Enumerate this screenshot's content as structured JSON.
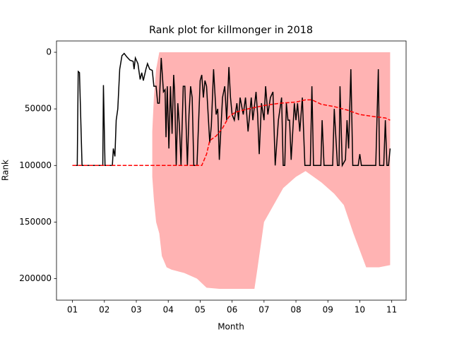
{
  "chart_data": {
    "type": "line",
    "title": "Rank plot for killmonger in 2018",
    "x_label": "Month",
    "y_label": "Rank",
    "xlim": [
      0.5,
      11.45
    ],
    "ylim": [
      -10000,
      219000
    ],
    "y_inverted": true,
    "xticks": [
      {
        "value": 1,
        "label": "01"
      },
      {
        "value": 2,
        "label": "02"
      },
      {
        "value": 3,
        "label": "03"
      },
      {
        "value": 4,
        "label": "04"
      },
      {
        "value": 5,
        "label": "05"
      },
      {
        "value": 6,
        "label": "06"
      },
      {
        "value": 7,
        "label": "07"
      },
      {
        "value": 8,
        "label": "08"
      },
      {
        "value": 9,
        "label": "09"
      },
      {
        "value": 10,
        "label": "10"
      },
      {
        "value": 11,
        "label": "11"
      }
    ],
    "yticks": [
      0,
      50000,
      100000,
      150000,
      200000
    ],
    "series": [
      {
        "style": "band",
        "color": "#ffb3b3",
        "x": [
          3.5,
          3.55,
          3.62,
          3.72,
          3.8,
          3.95,
          4.1,
          4.5,
          4.9,
          5.2,
          5.6,
          6.7,
          6.8,
          7.0,
          7.3,
          7.6,
          8.0,
          8.3,
          8.8,
          9.2,
          9.5,
          9.8,
          10.2,
          10.6,
          10.95
        ],
        "values_top": [
          70000,
          40000,
          15000,
          0,
          0,
          0,
          0,
          0,
          0,
          0,
          0,
          0,
          0,
          0,
          0,
          0,
          0,
          0,
          0,
          0,
          0,
          0,
          0,
          0,
          0
        ],
        "values": [
          110000,
          130000,
          150000,
          160000,
          180000,
          190000,
          192000,
          195000,
          200000,
          208000,
          209000,
          209000,
          190000,
          150000,
          135000,
          120000,
          110000,
          105000,
          115000,
          125000,
          135000,
          160000,
          190000,
          190000,
          188000
        ]
      },
      {
        "style": "solid",
        "color": "#000000",
        "x": [
          1.0,
          1.15,
          1.18,
          1.22,
          1.3,
          1.95,
          1.97,
          2.02,
          2.25,
          2.28,
          2.33,
          2.37,
          2.42,
          2.48,
          2.55,
          2.62,
          2.7,
          2.8,
          2.9,
          2.93,
          2.97,
          3.05,
          3.12,
          3.17,
          3.22,
          3.3,
          3.35,
          3.42,
          3.5,
          3.55,
          3.62,
          3.67,
          3.72,
          3.78,
          3.85,
          3.9,
          3.93,
          3.97,
          4.02,
          4.07,
          4.12,
          4.17,
          4.2,
          4.25,
          4.3,
          4.35,
          4.4,
          4.47,
          4.52,
          4.6,
          4.65,
          4.7,
          4.75,
          4.8,
          4.9,
          5.0,
          5.05,
          5.1,
          5.15,
          5.2,
          5.3,
          5.35,
          5.42,
          5.5,
          5.55,
          5.6,
          5.7,
          5.77,
          5.83,
          5.9,
          5.95,
          6.0,
          6.07,
          6.15,
          6.2,
          6.25,
          6.35,
          6.42,
          6.5,
          6.6,
          6.65,
          6.75,
          6.8,
          6.85,
          6.92,
          7.0,
          7.05,
          7.12,
          7.2,
          7.28,
          7.35,
          7.45,
          7.55,
          7.6,
          7.65,
          7.7,
          7.75,
          7.8,
          7.85,
          7.95,
          8.0,
          8.05,
          8.12,
          8.2,
          8.28,
          8.45,
          8.5,
          8.55,
          8.78,
          8.82,
          8.88,
          9.15,
          9.2,
          9.3,
          9.35,
          9.38,
          9.45,
          9.55,
          9.6,
          9.65,
          9.72,
          9.78,
          9.95,
          10.0,
          10.05,
          10.45,
          10.5,
          10.58,
          10.62,
          10.75,
          10.8,
          10.85,
          10.9,
          10.95
        ],
        "values": [
          100000,
          100000,
          17000,
          18000,
          100000,
          100000,
          29000,
          100000,
          100000,
          85000,
          92000,
          60000,
          50000,
          15000,
          3000,
          1000,
          4000,
          7000,
          8000,
          15000,
          5000,
          10000,
          24000,
          18000,
          25000,
          15000,
          10000,
          15000,
          16000,
          30000,
          30000,
          45000,
          45000,
          5000,
          35000,
          33000,
          75000,
          30000,
          85000,
          30000,
          72000,
          20000,
          35000,
          100000,
          45000,
          65000,
          100000,
          30000,
          30000,
          100000,
          55000,
          30000,
          40000,
          100000,
          100000,
          25000,
          20000,
          40000,
          25000,
          30000,
          80000,
          65000,
          15000,
          55000,
          50000,
          95000,
          40000,
          30000,
          60000,
          13000,
          40000,
          55000,
          60000,
          45000,
          60000,
          40000,
          55000,
          40000,
          70000,
          40000,
          60000,
          35000,
          55000,
          90000,
          45000,
          60000,
          30000,
          55000,
          40000,
          35000,
          100000,
          60000,
          40000,
          100000,
          100000,
          45000,
          60000,
          60000,
          95000,
          45000,
          60000,
          45000,
          70000,
          40000,
          100000,
          100000,
          30000,
          100000,
          100000,
          60000,
          100000,
          100000,
          50000,
          100000,
          100000,
          30000,
          100000,
          95000,
          60000,
          85000,
          15000,
          100000,
          100000,
          90000,
          100000,
          100000,
          100000,
          15000,
          100000,
          100000,
          60000,
          100000,
          100000,
          85000
        ]
      },
      {
        "style": "dashed",
        "color": "#ff0000",
        "x": [
          1.0,
          5.05,
          5.2,
          5.3,
          5.5,
          5.7,
          5.9,
          6.1,
          6.5,
          7.0,
          7.5,
          8.0,
          8.3,
          8.5,
          8.8,
          9.2,
          9.6,
          10.0,
          10.5,
          10.8,
          10.95
        ],
        "values": [
          100000,
          100000,
          90000,
          78000,
          74000,
          67000,
          57000,
          53000,
          50000,
          47000,
          45000,
          44000,
          42000,
          42000,
          46000,
          48000,
          51000,
          55000,
          57000,
          58000,
          60000
        ]
      }
    ]
  }
}
